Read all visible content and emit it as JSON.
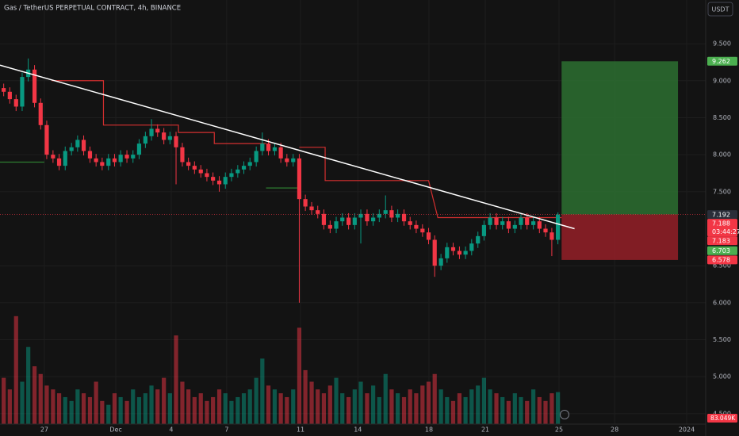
{
  "chart_data": {
    "type": "candlestick",
    "title": "Gas / TetherUS PERPETUAL CONTRACT, 4h, BINANCE",
    "currency_button": "USDT",
    "xlim": [
      0,
      38.2
    ],
    "xticks": [
      {
        "value": 2.4,
        "label": "27"
      },
      {
        "value": 6.27,
        "label": "Dec"
      },
      {
        "value": 9.27,
        "label": "4"
      },
      {
        "value": 12.27,
        "label": "7"
      },
      {
        "value": 16.27,
        "label": "11"
      },
      {
        "value": 19.37,
        "label": "14"
      },
      {
        "value": 23.22,
        "label": "18"
      },
      {
        "value": 26.27,
        "label": "21"
      },
      {
        "value": 30.26,
        "label": "25"
      },
      {
        "value": 33.27,
        "label": "28"
      },
      {
        "value": 37.17,
        "label": "2024"
      }
    ],
    "ylim": [
      4.36,
      10.09
    ],
    "yticks": [
      {
        "value": 9.5,
        "label": "9.500"
      },
      {
        "value": 9.0,
        "label": "9.000"
      },
      {
        "value": 8.5,
        "label": "8.500"
      },
      {
        "value": 8.0,
        "label": "8.000"
      },
      {
        "value": 7.5,
        "label": "7.500"
      },
      {
        "value": 6.5,
        "label": "6.500"
      },
      {
        "value": 6.0,
        "label": "6.000"
      },
      {
        "value": 5.5,
        "label": "5.500"
      },
      {
        "value": 5.0,
        "label": "5.000"
      },
      {
        "value": 4.5,
        "label": "4.500"
      }
    ],
    "volume_lim": [
      0,
      1100
    ],
    "up_color": "#089981",
    "down_color": "#f23645",
    "x": [
      0.2,
      0.53,
      0.87,
      1.2,
      1.53,
      1.87,
      2.2,
      2.53,
      2.87,
      3.2,
      3.53,
      3.87,
      4.2,
      4.53,
      4.87,
      5.2,
      5.53,
      5.87,
      6.2,
      6.53,
      6.87,
      7.2,
      7.53,
      7.87,
      8.2,
      8.53,
      8.87,
      9.2,
      9.53,
      9.87,
      10.2,
      10.53,
      10.87,
      11.2,
      11.53,
      11.87,
      12.2,
      12.53,
      12.87,
      13.2,
      13.53,
      13.87,
      14.2,
      14.53,
      14.87,
      15.2,
      15.53,
      15.87,
      16.2,
      16.53,
      16.87,
      17.2,
      17.53,
      17.87,
      18.2,
      18.53,
      18.87,
      19.2,
      19.53,
      19.87,
      20.2,
      20.53,
      20.87,
      21.2,
      21.53,
      21.87,
      22.2,
      22.53,
      22.87,
      23.2,
      23.53,
      23.87,
      24.2,
      24.53,
      24.87,
      25.2,
      25.53,
      25.87,
      26.2,
      26.53,
      26.87,
      27.2,
      27.53,
      27.87,
      28.2,
      28.53,
      28.87,
      29.2,
      29.53,
      29.87,
      30.2
    ],
    "open": [
      8.9,
      8.85,
      8.75,
      8.65,
      9.05,
      9.15,
      8.7,
      8.4,
      8.0,
      7.95,
      7.85,
      8.05,
      8.1,
      8.2,
      8.05,
      7.95,
      7.9,
      7.85,
      7.95,
      7.9,
      8.0,
      7.95,
      8.0,
      8.15,
      8.25,
      8.35,
      8.3,
      8.2,
      8.25,
      8.1,
      7.9,
      7.85,
      7.8,
      7.75,
      7.7,
      7.65,
      7.6,
      7.7,
      7.75,
      7.8,
      7.85,
      7.9,
      8.05,
      8.15,
      8.05,
      8.1,
      7.95,
      7.9,
      7.95,
      7.4,
      7.3,
      7.25,
      7.2,
      7.05,
      7.0,
      7.1,
      7.15,
      7.05,
      7.15,
      7.2,
      7.1,
      7.15,
      7.2,
      7.25,
      7.15,
      7.2,
      7.1,
      7.05,
      7.0,
      6.95,
      6.85,
      6.5,
      6.6,
      6.75,
      6.7,
      6.65,
      6.7,
      6.8,
      6.9,
      7.05,
      7.15,
      7.05,
      7.1,
      7.0,
      7.05,
      7.15,
      7.05,
      7.1,
      7.0,
      6.95,
      6.85
    ],
    "high": [
      8.96,
      8.91,
      8.81,
      9.11,
      9.3,
      9.21,
      8.76,
      8.46,
      8.06,
      8.01,
      8.11,
      8.16,
      8.26,
      8.26,
      8.11,
      8.01,
      7.96,
      8.01,
      8.01,
      8.06,
      8.06,
      8.06,
      8.21,
      8.31,
      8.48,
      8.41,
      8.36,
      8.31,
      8.31,
      8.16,
      7.96,
      7.91,
      7.86,
      7.81,
      7.76,
      7.71,
      7.76,
      7.81,
      7.86,
      7.91,
      7.96,
      8.11,
      8.3,
      8.21,
      8.16,
      8.16,
      8.01,
      8.01,
      8.01,
      7.46,
      7.36,
      7.31,
      7.26,
      7.11,
      7.16,
      7.21,
      7.21,
      7.21,
      7.26,
      7.26,
      7.21,
      7.26,
      7.45,
      7.31,
      7.26,
      7.26,
      7.16,
      7.11,
      7.06,
      7.01,
      6.91,
      6.66,
      6.81,
      6.81,
      6.76,
      6.76,
      6.86,
      6.96,
      7.11,
      7.21,
      7.21,
      7.16,
      7.16,
      7.11,
      7.21,
      7.21,
      7.16,
      7.16,
      7.06,
      7.01,
      7.22
    ],
    "low": [
      8.79,
      8.69,
      8.59,
      8.59,
      8.99,
      8.64,
      8.34,
      7.94,
      7.89,
      7.79,
      7.79,
      7.99,
      8.04,
      7.99,
      7.89,
      7.84,
      7.79,
      7.79,
      7.84,
      7.84,
      7.89,
      7.89,
      7.94,
      8.09,
      8.19,
      8.24,
      8.14,
      8.14,
      7.6,
      7.84,
      7.79,
      7.74,
      7.69,
      7.64,
      7.59,
      7.5,
      7.54,
      7.64,
      7.69,
      7.74,
      7.79,
      7.84,
      7.99,
      7.99,
      7.99,
      7.89,
      7.84,
      7.84,
      6.0,
      7.24,
      7.19,
      7.14,
      6.99,
      6.94,
      6.94,
      7.04,
      6.99,
      6.99,
      6.8,
      7.04,
      7.04,
      7.09,
      7.14,
      7.09,
      7.09,
      7.04,
      6.99,
      6.94,
      6.89,
      6.79,
      6.35,
      6.44,
      6.54,
      6.64,
      6.59,
      6.59,
      6.64,
      6.74,
      6.84,
      6.99,
      6.99,
      6.99,
      6.94,
      6.94,
      6.99,
      6.99,
      6.99,
      6.94,
      6.89,
      6.63,
      6.79
    ],
    "close": [
      8.85,
      8.75,
      8.65,
      9.05,
      9.15,
      8.7,
      8.4,
      8.0,
      7.95,
      7.85,
      8.05,
      8.1,
      8.2,
      8.05,
      7.95,
      7.9,
      7.85,
      7.95,
      7.9,
      8.0,
      7.95,
      8.0,
      8.15,
      8.25,
      8.35,
      8.3,
      8.2,
      8.25,
      8.1,
      7.9,
      7.85,
      7.8,
      7.75,
      7.7,
      7.65,
      7.6,
      7.7,
      7.75,
      7.8,
      7.85,
      7.9,
      8.05,
      8.15,
      8.05,
      8.1,
      7.95,
      7.9,
      7.95,
      7.4,
      7.3,
      7.25,
      7.2,
      7.05,
      7.0,
      7.1,
      7.15,
      7.05,
      7.15,
      7.2,
      7.1,
      7.15,
      7.2,
      7.25,
      7.15,
      7.2,
      7.1,
      7.05,
      7.0,
      6.95,
      6.85,
      6.5,
      6.6,
      6.75,
      6.7,
      6.65,
      6.7,
      6.8,
      6.9,
      7.05,
      7.15,
      7.05,
      7.1,
      7.0,
      7.05,
      7.15,
      7.05,
      7.1,
      7.0,
      6.95,
      6.85,
      7.192
    ],
    "volume": [
      120,
      90,
      280,
      110,
      200,
      150,
      130,
      100,
      90,
      80,
      70,
      60,
      90,
      80,
      70,
      110,
      60,
      50,
      80,
      70,
      60,
      90,
      70,
      80,
      100,
      90,
      120,
      80,
      230,
      110,
      90,
      70,
      80,
      60,
      70,
      90,
      80,
      60,
      70,
      80,
      90,
      120,
      170,
      100,
      90,
      80,
      70,
      90,
      250,
      140,
      110,
      90,
      80,
      100,
      120,
      80,
      70,
      90,
      110,
      80,
      100,
      70,
      130,
      90,
      80,
      70,
      90,
      80,
      100,
      110,
      130,
      90,
      70,
      60,
      80,
      70,
      90,
      100,
      120,
      90,
      80,
      70,
      60,
      80,
      70,
      60,
      90,
      70,
      60,
      80,
      83.049
    ],
    "volume_label": {
      "value": 83.049,
      "label": "83.049K"
    },
    "supertrend": [
      {
        "color": "#2e7d32",
        "x": [
          0,
          2.4
        ],
        "values": [
          7.9,
          7.9
        ]
      },
      {
        "color": "#d32f2f",
        "x": [
          2.8,
          5.6,
          5.6,
          9.66,
          9.66,
          11.6,
          11.6,
          14.4
        ],
        "values": [
          9.0,
          9.0,
          8.4,
          8.4,
          8.3,
          8.3,
          8.15,
          8.15
        ]
      },
      {
        "color": "#2e7d32",
        "x": [
          14.4,
          16.2
        ],
        "values": [
          7.55,
          7.55
        ]
      },
      {
        "color": "#d32f2f",
        "x": [
          16.2,
          17.6,
          17.6,
          23.2,
          23.7,
          30.4
        ],
        "values": [
          8.1,
          8.1,
          7.65,
          7.65,
          7.15,
          7.15
        ]
      }
    ],
    "trendline": {
      "x": [
        0,
        31.1
      ],
      "values": [
        9.21,
        7.0
      ],
      "color": "#ffffff"
    },
    "position": {
      "x_start": 30.4,
      "x_end": 36.7,
      "entry": 7.192,
      "target": 9.262,
      "stop": 6.578,
      "profit_color": "#2b6a30",
      "loss_color": "#8e1f27"
    },
    "current_price": 7.192,
    "countdown": "03:44:27",
    "price_labels": [
      {
        "value": 9.262,
        "label": "9.262",
        "color": "#4caf50"
      },
      {
        "value": 7.192,
        "label": "7.192",
        "color": "#2a2e39"
      },
      {
        "value": 7.188,
        "label": "7.188",
        "color": "#f23645"
      },
      {
        "value": 7.183,
        "label": "7.183",
        "color": "#f23645"
      },
      {
        "value": 6.703,
        "label": "6.703",
        "color": "#4caf50"
      },
      {
        "value": 6.578,
        "label": "6.578",
        "color": "#f23645"
      }
    ]
  }
}
